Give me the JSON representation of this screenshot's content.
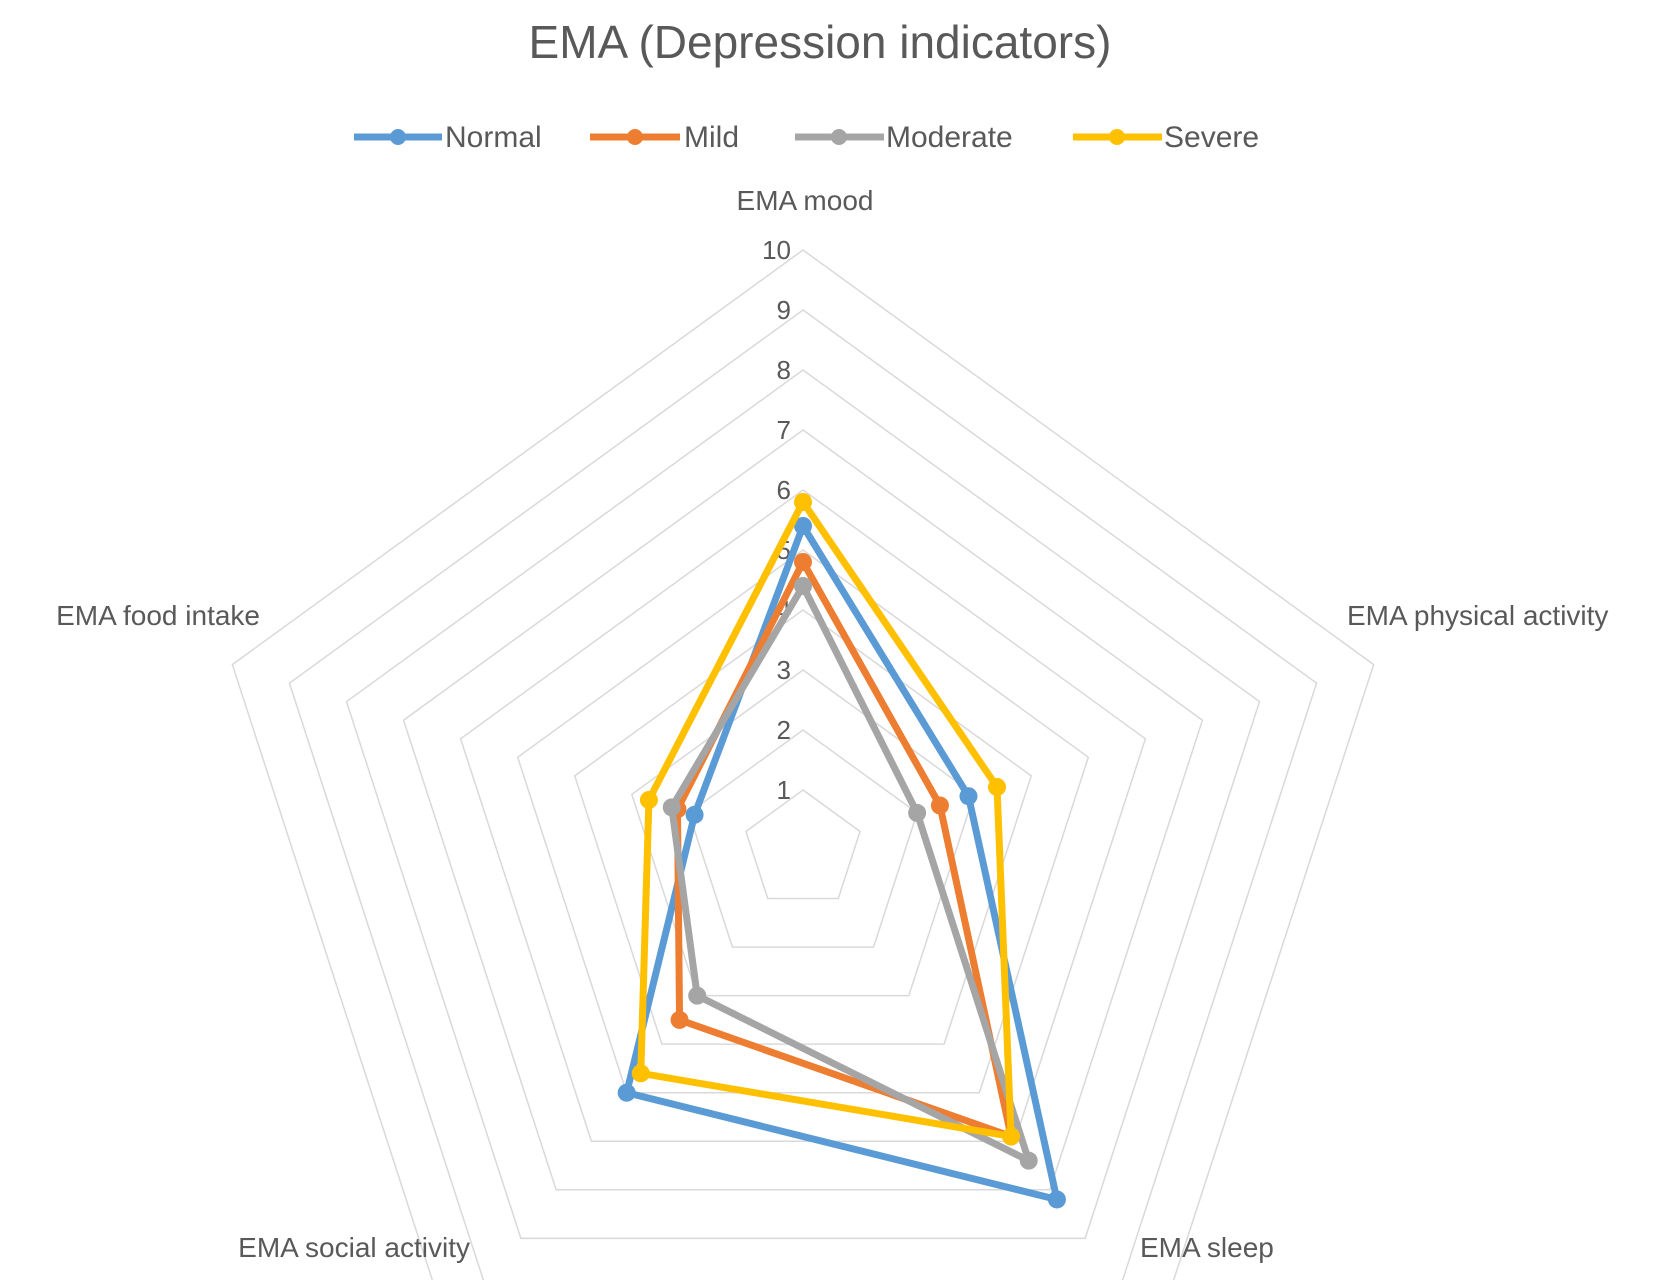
{
  "chart_data": {
    "type": "radar",
    "title": "EMA (Depression  indicators)",
    "axes": [
      "EMA mood",
      "EMA physical activity",
      "EMA sleep",
      "EMA social activity",
      "EMA food intake"
    ],
    "ticks": [
      "1",
      "2",
      "3",
      "4",
      "5",
      "6",
      "7",
      "8",
      "9",
      "10"
    ],
    "range": [
      0,
      10
    ],
    "legend_position": "top",
    "series": [
      {
        "name": "Normal",
        "color": "#5b9bd5",
        "values": [
          5.4,
          2.9,
          7.2,
          5.0,
          1.9
        ]
      },
      {
        "name": "Mild",
        "color": "#ed7d31",
        "values": [
          4.8,
          2.4,
          5.9,
          3.5,
          2.2
        ]
      },
      {
        "name": "Moderate",
        "color": "#a5a5a5",
        "values": [
          4.4,
          2.0,
          6.4,
          3.0,
          2.3
        ]
      },
      {
        "name": "Severe",
        "color": "#ffc000",
        "values": [
          5.8,
          3.4,
          5.9,
          4.6,
          2.7
        ]
      }
    ]
  }
}
